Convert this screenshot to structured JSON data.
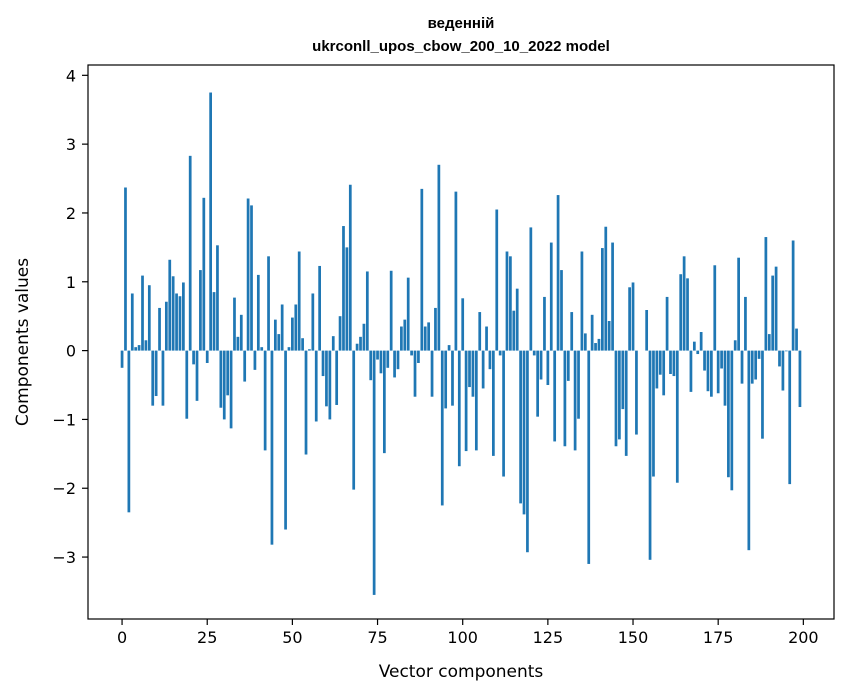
{
  "chart_data": {
    "type": "bar",
    "title_line1": "веденній",
    "title_line2": "ukrconll_upos_cbow_200_10_2022 model",
    "xlabel": "Vector components",
    "ylabel": "Components values",
    "xlim": [
      -10,
      209
    ],
    "ylim": [
      -3.9,
      4.15
    ],
    "xticks": [
      0,
      25,
      50,
      75,
      100,
      125,
      150,
      175,
      200
    ],
    "xtick_labels": [
      "0",
      "25",
      "50",
      "75",
      "100",
      "125",
      "150",
      "175",
      "200"
    ],
    "yticks": [
      -3,
      -2,
      -1,
      0,
      1,
      2,
      3,
      4
    ],
    "ytick_labels": [
      "−3",
      "−2",
      "−1",
      "0",
      "1",
      "2",
      "3",
      "4"
    ],
    "color": "#1f77b4",
    "grid": false,
    "legend": "none",
    "x": [
      0,
      1,
      2,
      3,
      4,
      5,
      6,
      7,
      8,
      9,
      10,
      11,
      12,
      13,
      14,
      15,
      16,
      17,
      18,
      19,
      20,
      21,
      22,
      23,
      24,
      25,
      26,
      27,
      28,
      29,
      30,
      31,
      32,
      33,
      34,
      35,
      36,
      37,
      38,
      39,
      40,
      41,
      42,
      43,
      44,
      45,
      46,
      47,
      48,
      49,
      50,
      51,
      52,
      53,
      54,
      55,
      56,
      57,
      58,
      59,
      60,
      61,
      62,
      63,
      64,
      65,
      66,
      67,
      68,
      69,
      70,
      71,
      72,
      73,
      74,
      75,
      76,
      77,
      78,
      79,
      80,
      81,
      82,
      83,
      84,
      85,
      86,
      87,
      88,
      89,
      90,
      91,
      92,
      93,
      94,
      95,
      96,
      97,
      98,
      99,
      100,
      101,
      102,
      103,
      104,
      105,
      106,
      107,
      108,
      109,
      110,
      111,
      112,
      113,
      114,
      115,
      116,
      117,
      118,
      119,
      120,
      121,
      122,
      123,
      124,
      125,
      126,
      127,
      128,
      129,
      130,
      131,
      132,
      133,
      134,
      135,
      136,
      137,
      138,
      139,
      140,
      141,
      142,
      143,
      144,
      145,
      146,
      147,
      148,
      149,
      150,
      151,
      152,
      153,
      154,
      155,
      156,
      157,
      158,
      159,
      160,
      161,
      162,
      163,
      164,
      165,
      166,
      167,
      168,
      169,
      170,
      171,
      172,
      173,
      174,
      175,
      176,
      177,
      178,
      179,
      180,
      181,
      182,
      183,
      184,
      185,
      186,
      187,
      188,
      189,
      190,
      191,
      192,
      193,
      194,
      195,
      196,
      197,
      198,
      199
    ],
    "values": [
      -0.25,
      2.37,
      -2.35,
      0.83,
      0.05,
      0.08,
      1.09,
      0.15,
      0.95,
      -0.8,
      -0.66,
      0.62,
      -0.8,
      0.71,
      1.32,
      1.08,
      0.83,
      0.79,
      0.99,
      -0.99,
      2.83,
      -0.2,
      -0.73,
      1.17,
      2.22,
      -0.18,
      3.75,
      0.85,
      1.53,
      -0.83,
      -1.0,
      -0.65,
      -1.13,
      0.77,
      0.2,
      0.52,
      -0.45,
      2.21,
      2.11,
      -0.28,
      1.1,
      0.05,
      -1.45,
      1.37,
      -2.82,
      0.45,
      0.24,
      0.67,
      -2.6,
      0.05,
      0.48,
      0.67,
      1.44,
      0.18,
      -1.51,
      0.02,
      0.83,
      -1.03,
      1.23,
      -0.37,
      -0.81,
      -1.0,
      0.21,
      -0.79,
      0.5,
      1.81,
      1.5,
      2.41,
      -2.02,
      0.1,
      0.2,
      0.39,
      1.15,
      -0.43,
      -3.55,
      -0.13,
      -0.33,
      -1.49,
      -0.25,
      1.16,
      -0.39,
      -0.27,
      0.35,
      0.45,
      1.06,
      -0.07,
      -0.67,
      -0.18,
      2.35,
      0.35,
      0.41,
      -0.67,
      0.62,
      2.7,
      -2.25,
      -0.84,
      0.08,
      -0.8,
      2.31,
      -1.68,
      0.76,
      -1.46,
      -0.53,
      -0.67,
      -1.45,
      0.56,
      -0.55,
      0.35,
      -0.27,
      -1.53,
      2.05,
      -0.07,
      -1.83,
      1.44,
      1.37,
      0.58,
      0.9,
      -2.22,
      -2.38,
      -2.93,
      1.79,
      -0.07,
      -0.96,
      -0.42,
      0.78,
      -0.5,
      1.57,
      -1.32,
      2.26,
      1.17,
      -1.39,
      -0.44,
      0.56,
      -1.45,
      -0.99,
      1.44,
      0.25,
      -3.1,
      0.52,
      0.11,
      0.17,
      1.49,
      1.8,
      0.43,
      1.57,
      -1.39,
      -1.29,
      -0.85,
      -1.53,
      0.92,
      0.99,
      -1.22,
      0.0,
      0.0,
      0.59,
      -3.04,
      -1.83,
      -0.55,
      -0.35,
      -0.65,
      0.78,
      -0.34,
      -0.37,
      -1.92,
      1.11,
      1.37,
      1.05,
      -0.6,
      0.13,
      -0.05,
      0.27,
      -0.29,
      -0.59,
      -0.67,
      1.24,
      -0.62,
      -0.26,
      -0.8,
      -1.84,
      -2.03,
      0.15,
      1.35,
      -0.48,
      0.78,
      -2.9,
      -0.48,
      -0.42,
      -0.12,
      -1.28,
      1.65,
      0.24,
      1.09,
      1.22,
      -0.23,
      -0.58,
      -0.01,
      -1.94,
      1.6,
      0.32,
      -0.82
    ]
  }
}
